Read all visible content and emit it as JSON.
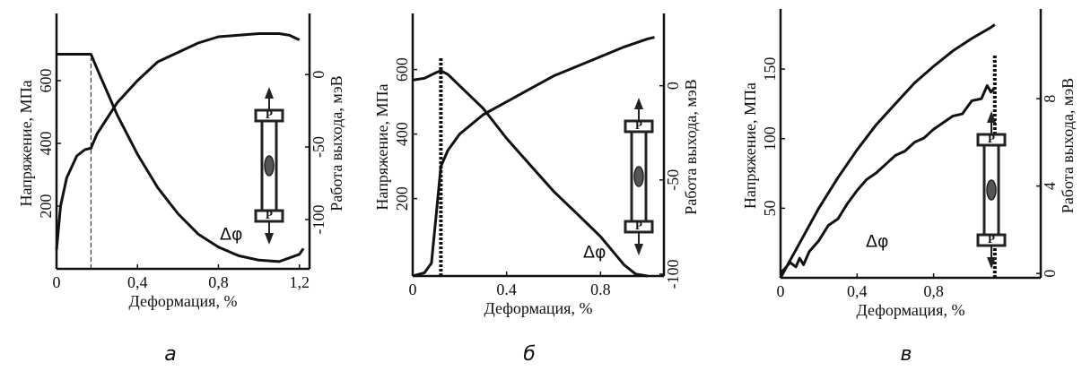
{
  "chart_data": [
    {
      "type": "line",
      "panel_label": "а",
      "x_label": "Деформация, %",
      "y_label": "Напряжение, МПа",
      "y2_label": "Работа выхода, мэВ",
      "annotation": "Δφ",
      "icon_labels": [
        "P",
        "P"
      ],
      "xlim": [
        0,
        1.25
      ],
      "xticks": [
        0,
        {
          "value": 0.4,
          "label": "0,4"
        },
        {
          "value": 0.8,
          "label": "0,8"
        },
        {
          "value": 1.2,
          "label": "1,2"
        }
      ],
      "ylim": [
        0,
        800
      ],
      "yticks": [
        200,
        400,
        600
      ],
      "y2lim": [
        -134,
        39
      ],
      "y2ticks": [
        0,
        -50,
        -100
      ],
      "vline": {
        "x": 0.17,
        "style": "dashed"
      },
      "series": [
        {
          "axis": "y",
          "color": "#111111",
          "x": [
            0,
            0.02,
            0.05,
            0.1,
            0.14,
            0.17,
            0.2,
            0.25,
            0.3,
            0.4,
            0.5,
            0.6,
            0.7,
            0.8,
            0.9,
            1.0,
            1.1,
            1.15,
            1.2
          ],
          "values": [
            60,
            200,
            290,
            360,
            380,
            385,
            430,
            480,
            530,
            600,
            660,
            690,
            720,
            740,
            745,
            750,
            750,
            745,
            730
          ]
        },
        {
          "axis": "y2",
          "color": "#111111",
          "x": [
            0,
            0.05,
            0.1,
            0.17,
            0.2,
            0.25,
            0.3,
            0.4,
            0.5,
            0.6,
            0.7,
            0.8,
            0.9,
            1.0,
            1.1,
            1.2,
            1.22
          ],
          "values": [
            14,
            14,
            14,
            14,
            4,
            -12,
            -28,
            -55,
            -78,
            -96,
            -110,
            -119,
            -125,
            -128,
            -129,
            -124,
            -120
          ]
        }
      ]
    },
    {
      "type": "line",
      "panel_label": "б",
      "x_label": "Деформация, %",
      "y_label": "Напряжение, МПа",
      "y2_label": "Работа выхода, мэВ",
      "annotation": "Δφ",
      "icon_labels": [
        "P",
        "P"
      ],
      "xlim": [
        0,
        1.07
      ],
      "xticks": [
        0,
        0.4,
        0.8
      ],
      "ylim": [
        -40,
        760
      ],
      "yticks": [
        200,
        400,
        600
      ],
      "y2lim": [
        -101,
        36
      ],
      "y2ticks": [
        0,
        -50,
        -100
      ],
      "vline": {
        "x": 0.12,
        "style": "dotted"
      },
      "series": [
        {
          "axis": "y",
          "color": "#111111",
          "x": [
            0,
            0.05,
            0.08,
            0.1,
            0.12,
            0.15,
            0.2,
            0.3,
            0.4,
            0.5,
            0.6,
            0.7,
            0.8,
            0.9,
            1.0,
            1.03
          ],
          "values": [
            -40,
            -30,
            0,
            150,
            300,
            350,
            400,
            460,
            500,
            540,
            580,
            610,
            640,
            670,
            695,
            700
          ]
        },
        {
          "axis": "y2",
          "color": "#111111",
          "x": [
            0,
            0.05,
            0.1,
            0.12,
            0.15,
            0.2,
            0.3,
            0.4,
            0.5,
            0.6,
            0.7,
            0.8,
            0.9,
            0.95,
            1.0
          ],
          "values": [
            3,
            4,
            7,
            8,
            6,
            0,
            -12,
            -28,
            -42,
            -56,
            -68,
            -80,
            -95,
            -100,
            -101
          ]
        }
      ]
    },
    {
      "type": "line",
      "panel_label": "в",
      "x_label": "Деформация, %",
      "y_label": "Напряжение, МПа",
      "y2_label": "Работа выхода, мэВ",
      "annotation": "Δφ",
      "icon_labels": [
        "P",
        "P"
      ],
      "xlim": [
        0,
        1.36
      ],
      "xticks": [
        0,
        {
          "value": 0.4,
          "label": "0,4"
        },
        {
          "value": 0.8,
          "label": "0,8"
        }
      ],
      "ylim": [
        0,
        190
      ],
      "yticks": [
        50,
        100,
        150
      ],
      "y2lim": [
        -0.2,
        11.9
      ],
      "y2ticks": [
        0,
        4,
        8
      ],
      "vline": {
        "x": 1.12,
        "style": "dotted"
      },
      "series": [
        {
          "axis": "y",
          "color": "#111111",
          "x": [
            0,
            0.1,
            0.2,
            0.3,
            0.4,
            0.5,
            0.6,
            0.7,
            0.8,
            0.9,
            1.0,
            1.1,
            1.12
          ],
          "values": [
            0,
            25,
            50,
            72,
            92,
            110,
            125,
            140,
            152,
            163,
            172,
            180,
            182
          ]
        },
        {
          "axis": "y2",
          "color": "#111111",
          "x": [
            0,
            0.05,
            0.08,
            0.1,
            0.12,
            0.15,
            0.2,
            0.25,
            0.3,
            0.35,
            0.4,
            0.45,
            0.5,
            0.55,
            0.6,
            0.65,
            0.7,
            0.75,
            0.8,
            0.85,
            0.9,
            0.95,
            1.0,
            1.05,
            1.08,
            1.1,
            1.12
          ],
          "values": [
            0,
            0.5,
            0.3,
            0.7,
            0.4,
            1.0,
            1.5,
            2.2,
            2.5,
            3.2,
            3.8,
            4.3,
            4.6,
            5.0,
            5.4,
            5.6,
            6.0,
            6.2,
            6.6,
            6.9,
            7.2,
            7.3,
            7.9,
            8.0,
            8.6,
            8.3,
            8.5
          ]
        }
      ]
    }
  ]
}
